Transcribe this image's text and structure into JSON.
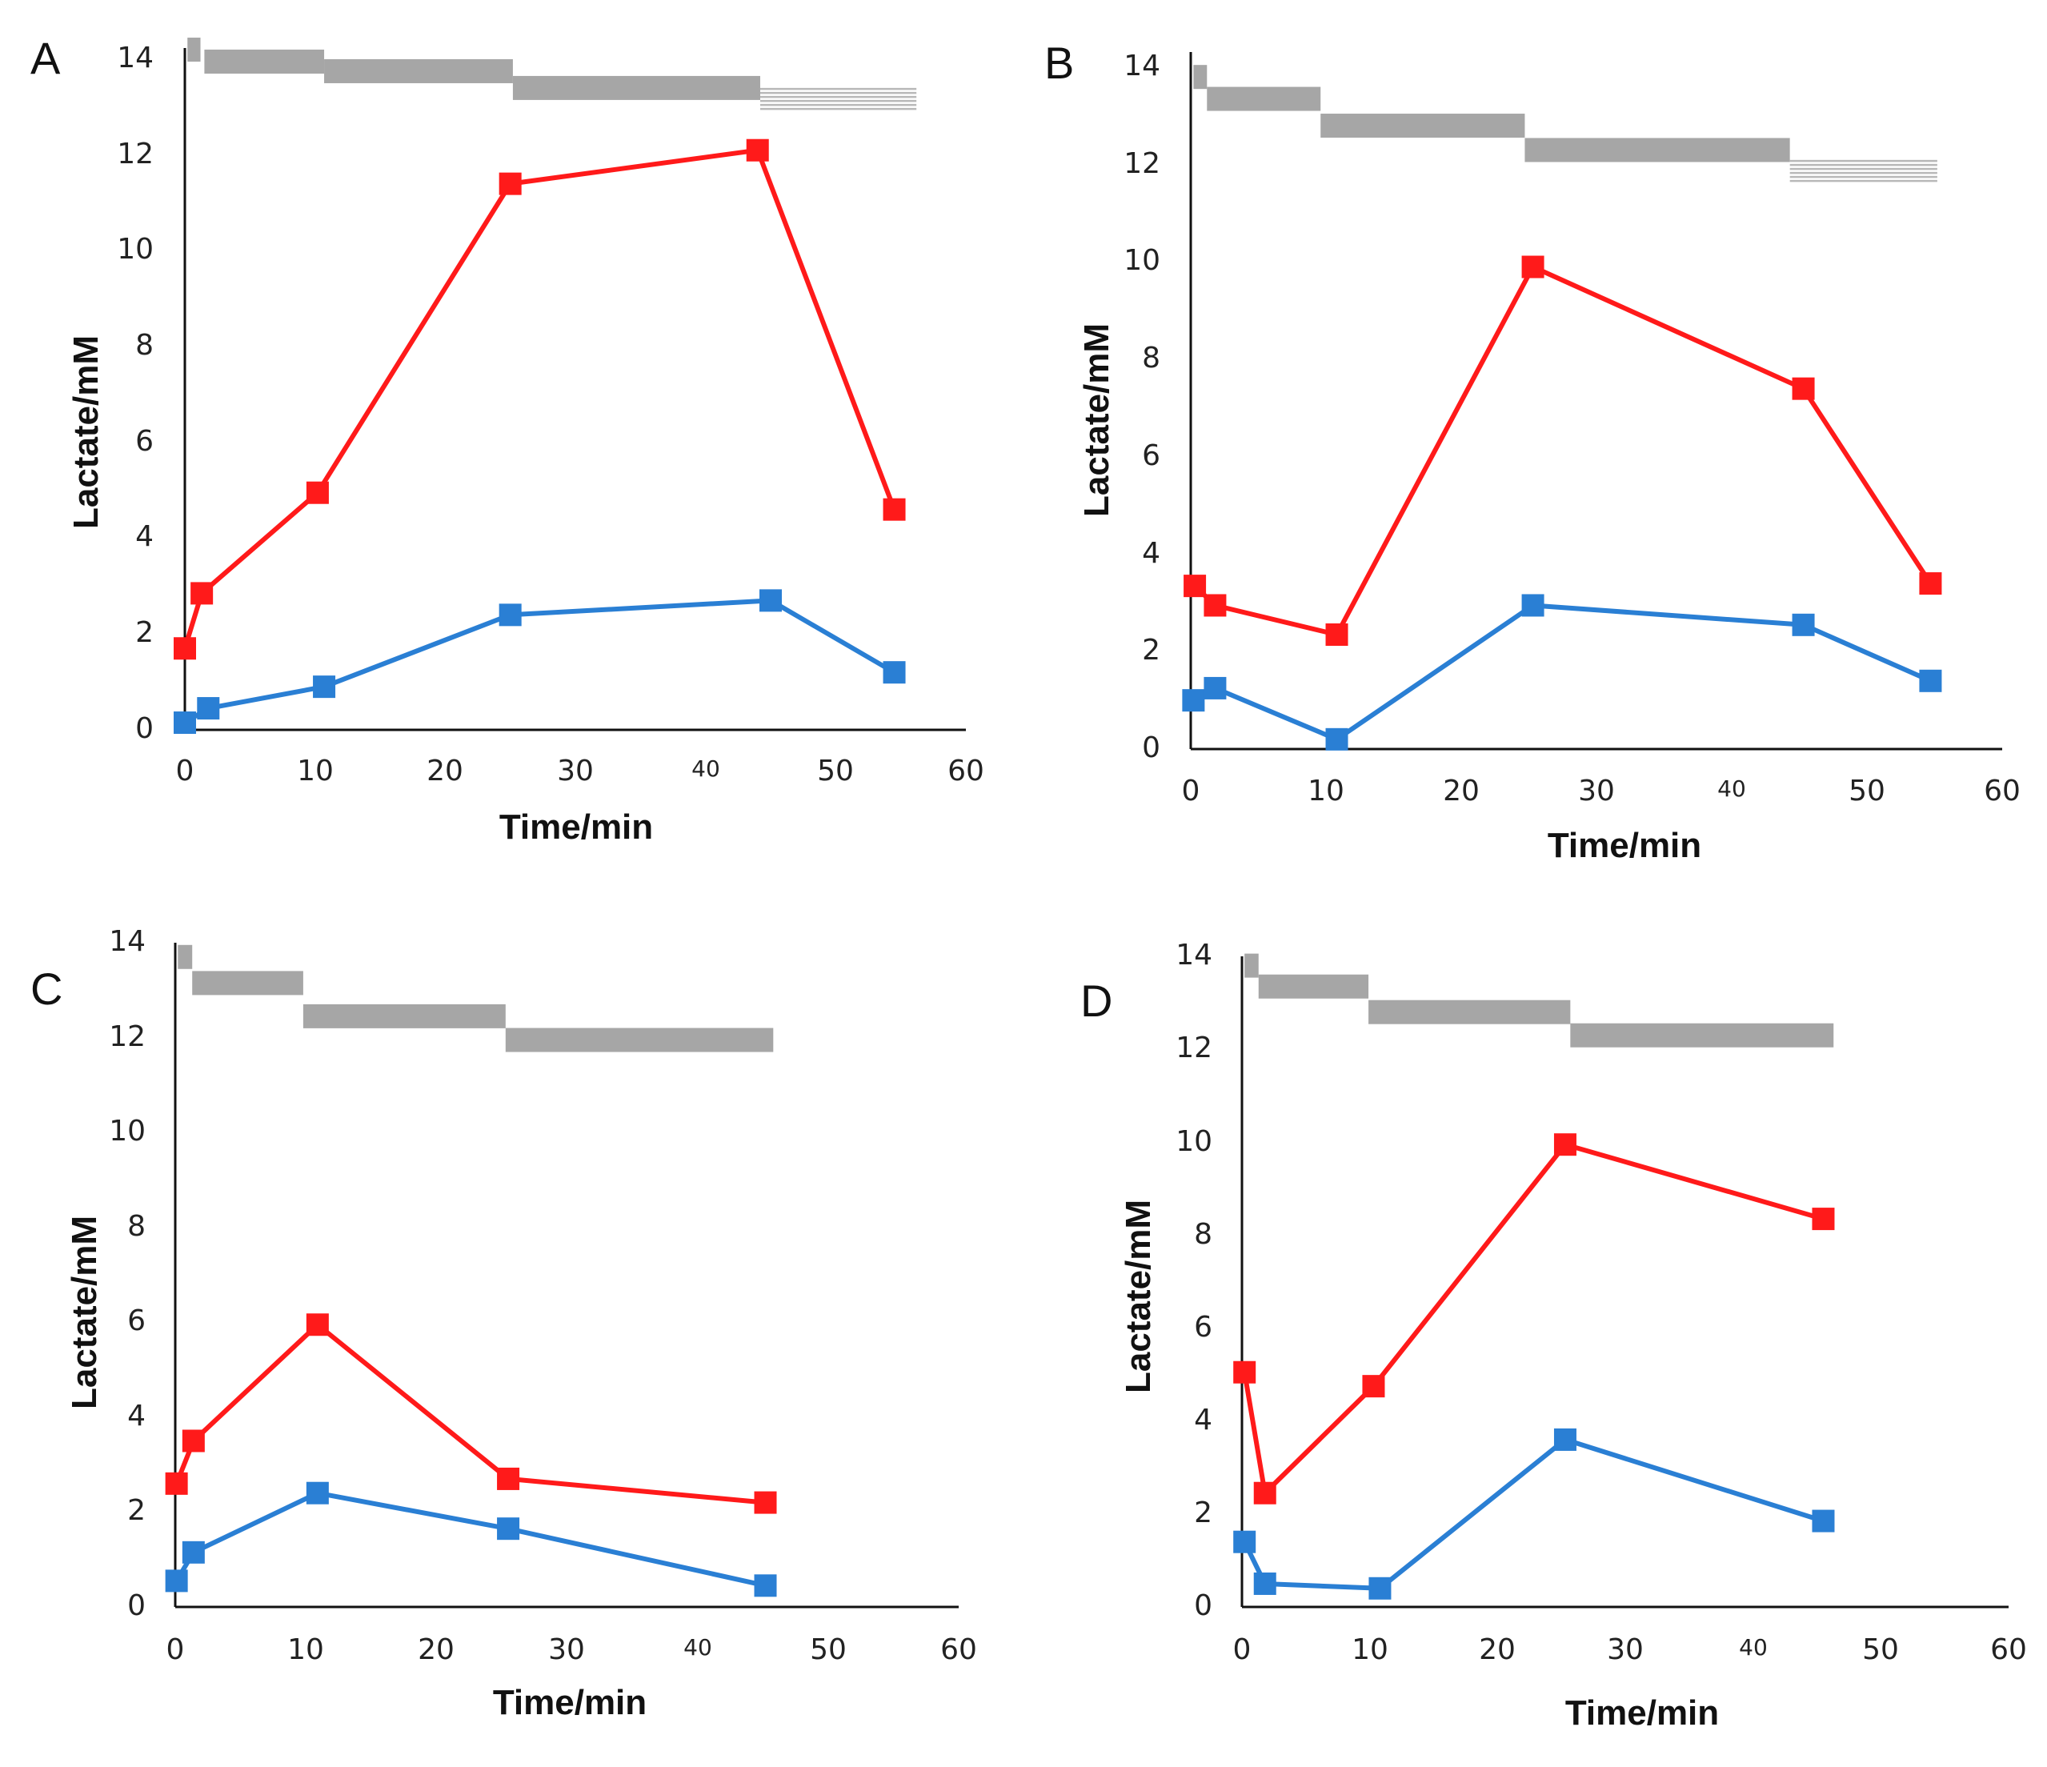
{
  "figure": {
    "x_axis_label": "Time/min",
    "y_axis_label": "Lactate/mM"
  },
  "colors": {
    "series_red": "#ff1a1a",
    "series_blue": "#2a7fd4",
    "bar_gray": "#a6a6a6",
    "bar_light": "#b8b8b8",
    "axis": "#111111"
  },
  "chart_data": [
    {
      "panel": "A",
      "type": "line",
      "xlabel": "Time/min",
      "ylabel": "Lactate/mM",
      "xlim": [
        0,
        60
      ],
      "ylim": [
        0,
        14
      ],
      "x_ticks": [
        "0",
        "10",
        "20",
        "30",
        "40",
        "50",
        "60"
      ],
      "y_ticks": [
        "0",
        "2",
        "4",
        "6",
        "8",
        "10",
        "12",
        "14"
      ],
      "series": [
        {
          "name": "red",
          "color": "#ff1a1a",
          "x": [
            0,
            1.3,
            10.2,
            25,
            44,
            54.5
          ],
          "y": [
            1.7,
            2.85,
            4.95,
            11.4,
            12.1,
            4.6
          ]
        },
        {
          "name": "blue",
          "color": "#2a7fd4",
          "x": [
            0,
            1.8,
            10.7,
            25,
            45,
            54.5
          ],
          "y": [
            0.15,
            0.45,
            0.9,
            2.4,
            2.7,
            1.2
          ]
        }
      ],
      "step_bars": [
        {
          "x0": 0.2,
          "x1": 1.2,
          "y": 14.2,
          "style": "solid"
        },
        {
          "x0": 1.5,
          "x1": 10.7,
          "y": 13.95,
          "style": "solid"
        },
        {
          "x0": 10.7,
          "x1": 25.2,
          "y": 13.75,
          "style": "solid"
        },
        {
          "x0": 25.2,
          "x1": 44.2,
          "y": 13.4,
          "style": "solid"
        },
        {
          "x0": 44.2,
          "x1": 56.2,
          "y": 13.15,
          "style": "striped"
        }
      ]
    },
    {
      "panel": "B",
      "type": "line",
      "xlabel": "Time/min",
      "ylabel": "Lactate/mM",
      "xlim": [
        0,
        60
      ],
      "ylim": [
        0,
        14
      ],
      "x_ticks": [
        "0",
        "10",
        "20",
        "30",
        "40",
        "50",
        "60"
      ],
      "y_ticks": [
        "0",
        "2",
        "4",
        "6",
        "8",
        "10",
        "12",
        "14"
      ],
      "series": [
        {
          "name": "red",
          "color": "#ff1a1a",
          "x": [
            0.3,
            1.8,
            10.8,
            25.3,
            45.3,
            54.7
          ],
          "y": [
            3.35,
            2.95,
            2.35,
            9.9,
            7.4,
            3.4
          ]
        },
        {
          "name": "blue",
          "color": "#2a7fd4",
          "x": [
            0.2,
            1.8,
            10.8,
            25.3,
            45.3,
            54.7
          ],
          "y": [
            1.0,
            1.25,
            0.2,
            2.95,
            2.55,
            1.4
          ]
        }
      ],
      "step_bars": [
        {
          "x0": 0.2,
          "x1": 1.2,
          "y": 13.8,
          "style": "solid"
        },
        {
          "x0": 1.2,
          "x1": 9.6,
          "y": 13.35,
          "style": "solid"
        },
        {
          "x0": 9.6,
          "x1": 24.7,
          "y": 12.8,
          "style": "solid"
        },
        {
          "x0": 24.7,
          "x1": 44.3,
          "y": 12.3,
          "style": "solid"
        },
        {
          "x0": 44.3,
          "x1": 55.2,
          "y": 11.85,
          "style": "striped"
        }
      ]
    },
    {
      "panel": "C",
      "type": "line",
      "xlabel": "Time/min",
      "ylabel": "Lactate/mM",
      "xlim": [
        0,
        60
      ],
      "ylim": [
        0,
        14
      ],
      "x_ticks": [
        "0",
        "10",
        "20",
        "30",
        "40",
        "50",
        "60"
      ],
      "y_ticks": [
        "0",
        "2",
        "4",
        "6",
        "8",
        "10",
        "12",
        "14"
      ],
      "series": [
        {
          "name": "red",
          "color": "#ff1a1a",
          "x": [
            0.1,
            1.4,
            10.9,
            25.5,
            45.2
          ],
          "y": [
            2.6,
            3.5,
            5.95,
            2.7,
            2.2
          ]
        },
        {
          "name": "blue",
          "color": "#2a7fd4",
          "x": [
            0.1,
            1.4,
            10.9,
            25.5,
            45.2
          ],
          "y": [
            0.55,
            1.15,
            2.4,
            1.65,
            0.45
          ]
        }
      ],
      "step_bars": [
        {
          "x0": 0.2,
          "x1": 1.3,
          "y": 13.7,
          "style": "solid"
        },
        {
          "x0": 1.3,
          "x1": 9.8,
          "y": 13.15,
          "style": "solid"
        },
        {
          "x0": 9.8,
          "x1": 25.3,
          "y": 12.45,
          "style": "solid"
        },
        {
          "x0": 25.3,
          "x1": 45.8,
          "y": 11.95,
          "style": "solid"
        }
      ]
    },
    {
      "panel": "D",
      "type": "line",
      "xlabel": "Time/min",
      "ylabel": "Lactate/mM",
      "xlim": [
        0,
        60
      ],
      "ylim": [
        0,
        14
      ],
      "x_ticks": [
        "0",
        "10",
        "20",
        "30",
        "40",
        "50",
        "60"
      ],
      "y_ticks": [
        "0",
        "2",
        "4",
        "6",
        "8",
        "10",
        "12",
        "14"
      ],
      "series": [
        {
          "name": "red",
          "color": "#ff1a1a",
          "x": [
            0.2,
            1.8,
            10.3,
            25.3,
            45.5
          ],
          "y": [
            5.05,
            2.45,
            4.75,
            9.95,
            8.35
          ]
        },
        {
          "name": "blue",
          "color": "#2a7fd4",
          "x": [
            0.2,
            1.8,
            10.8,
            25.3,
            45.5
          ],
          "y": [
            1.4,
            0.5,
            0.4,
            3.6,
            1.85
          ]
        }
      ],
      "step_bars": [
        {
          "x0": 0.2,
          "x1": 1.3,
          "y": 13.8,
          "style": "solid"
        },
        {
          "x0": 1.3,
          "x1": 9.9,
          "y": 13.35,
          "style": "solid"
        },
        {
          "x0": 9.9,
          "x1": 25.7,
          "y": 12.8,
          "style": "solid"
        },
        {
          "x0": 25.7,
          "x1": 46.3,
          "y": 12.3,
          "style": "solid"
        }
      ]
    }
  ]
}
